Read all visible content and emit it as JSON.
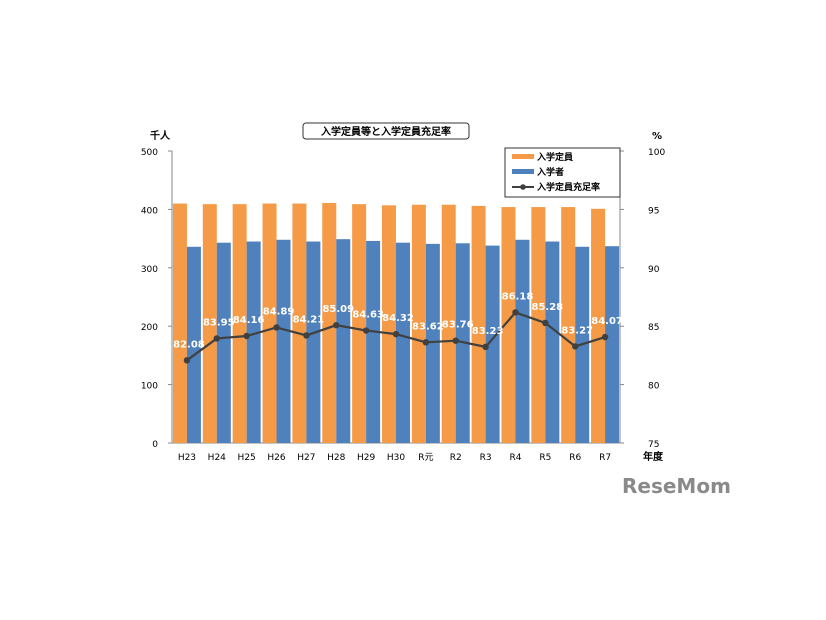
{
  "chart_data": {
    "type": "bar",
    "title": "入学定員等と入学定員充足率",
    "left_unit": "千人",
    "right_unit": "%",
    "xlabel": "年度",
    "categories": [
      "H23",
      "H24",
      "H25",
      "H26",
      "H27",
      "H28",
      "H29",
      "H30",
      "R元",
      "R2",
      "R3",
      "R4",
      "R5",
      "R6",
      "R7"
    ],
    "ylim": [
      0,
      500
    ],
    "y_ticks": [
      "0",
      "100",
      "200",
      "300",
      "400",
      "500"
    ],
    "y2lim": [
      75,
      100
    ],
    "y2_ticks": [
      "75",
      "80",
      "85",
      "90",
      "95",
      "100"
    ],
    "legend_position": "top-right",
    "grid": false,
    "series": [
      {
        "name": "入学定員",
        "type": "bar",
        "color": "#f59a46",
        "values": [
          410,
          409,
          409,
          410,
          410,
          411,
          409,
          407,
          408,
          408,
          406,
          404,
          404,
          404,
          401
        ]
      },
      {
        "name": "入学者",
        "type": "bar",
        "color": "#4f81bd",
        "values": [
          336,
          343,
          345,
          348,
          345,
          349,
          346,
          343,
          341,
          342,
          338,
          348,
          345,
          336,
          337
        ]
      },
      {
        "name": "入学定員充足率",
        "type": "line",
        "axis": "right",
        "color": "#404040",
        "values": [
          82.08,
          83.95,
          84.16,
          84.89,
          84.21,
          85.09,
          84.63,
          84.32,
          83.62,
          83.76,
          83.23,
          86.18,
          85.28,
          83.27,
          84.07
        ]
      }
    ]
  },
  "logo": {
    "text": "ReseMom"
  }
}
